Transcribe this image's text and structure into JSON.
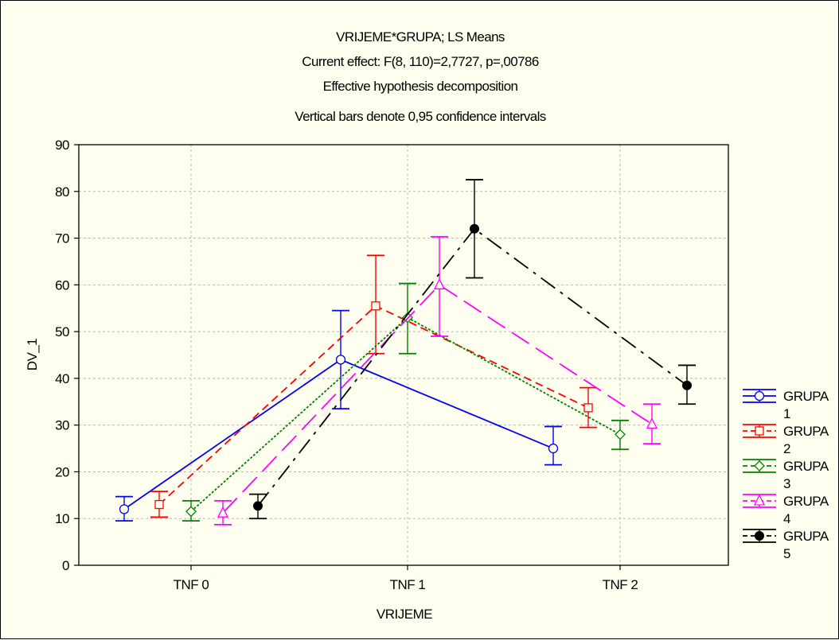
{
  "chart_data": {
    "type": "line",
    "title": [
      "VRIJEME*GRUPA; LS Means",
      "Current effect: F(8, 110)=2,7727, p=,00786",
      "Effective hypothesis decomposition",
      "Vertical bars denote 0,95 confidence intervals"
    ],
    "xlabel": "VRIJEME",
    "ylabel": "DV_1",
    "categories": [
      "TNF 0",
      "TNF 1",
      "TNF 2"
    ],
    "ylim": [
      0,
      90
    ],
    "yticks": [
      "0",
      "10",
      "20",
      "30",
      "40",
      "50",
      "60",
      "70",
      "80",
      "90"
    ],
    "grid": true,
    "legend_position": "right",
    "series": [
      {
        "name": "GRUPA 1",
        "color": "#0000ff",
        "marker": "circle",
        "dash": "solid",
        "values": [
          12,
          44,
          25
        ],
        "lower": [
          9.5,
          33.5,
          21.5
        ],
        "upper": [
          14.7,
          54.5,
          29.7
        ]
      },
      {
        "name": "GRUPA 2",
        "color": "#ff0000",
        "marker": "square",
        "dash": "dashed",
        "values": [
          13,
          55.5,
          33.7
        ],
        "lower": [
          10.3,
          45.3,
          29.5
        ],
        "upper": [
          15.8,
          66.3,
          38
        ]
      },
      {
        "name": "GRUPA 3",
        "color": "#008000",
        "marker": "diamond",
        "dash": "dotted",
        "values": [
          11.5,
          53,
          28
        ],
        "lower": [
          9.5,
          45.3,
          24.8
        ],
        "upper": [
          13.8,
          60.3,
          31
        ]
      },
      {
        "name": "GRUPA 4",
        "color": "#ff00ff",
        "marker": "triangle",
        "dash": "longdash",
        "values": [
          11.2,
          60,
          30.2
        ],
        "lower": [
          8.7,
          49,
          26
        ],
        "upper": [
          13.8,
          70.3,
          34.5
        ]
      },
      {
        "name": "GRUPA 5",
        "color": "#000000",
        "marker": "filled-circle",
        "dash": "dashdot",
        "values": [
          12.7,
          72,
          38.5
        ],
        "lower": [
          10,
          61.5,
          34.5
        ],
        "upper": [
          15.2,
          82.5,
          42.8
        ]
      }
    ]
  }
}
